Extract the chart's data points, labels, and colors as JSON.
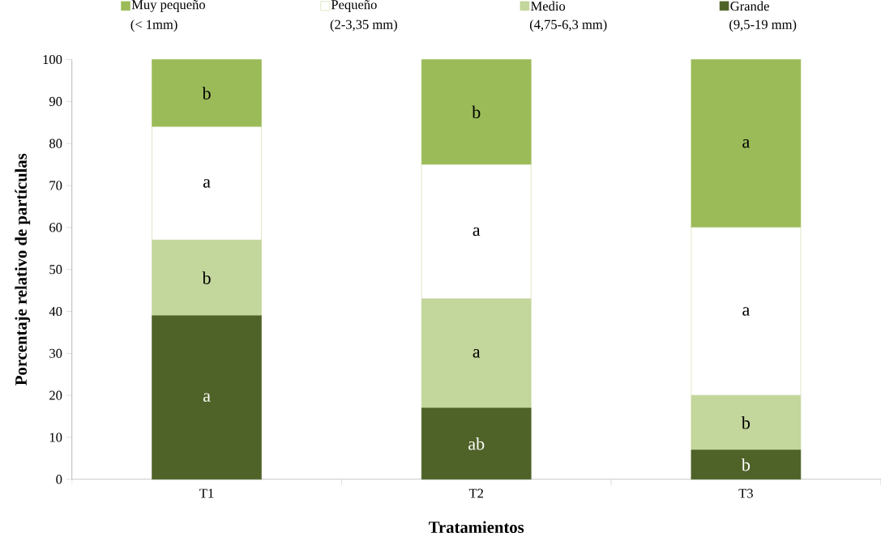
{
  "chart_data": {
    "type": "bar",
    "stacked": true,
    "xlabel": "Tratamientos",
    "ylabel": "Porcentaje relativo de partículas",
    "categories": [
      "T1",
      "T2",
      "T3"
    ],
    "series": [
      {
        "name": "Grande",
        "color": "#4f6228",
        "values": [
          39,
          17,
          7
        ],
        "value_labels": [
          "a",
          "ab",
          "b"
        ]
      },
      {
        "name": "Medio",
        "color": "#c3d69b",
        "values": [
          18,
          26,
          13
        ],
        "value_labels": [
          "b",
          "a",
          "b"
        ]
      },
      {
        "name": "Pequeño",
        "color": "#ffffff",
        "values": [
          27,
          32,
          40
        ],
        "value_labels": [
          "a",
          "a",
          "a"
        ]
      },
      {
        "name": "Muy pequeño",
        "color": "#9bbb59",
        "values": [
          16,
          25,
          40
        ],
        "value_labels": [
          "b",
          "b",
          "a"
        ]
      }
    ],
    "annotations": [
      "(< 1mm)",
      "(2-3,35 mm)",
      "(4,75-6,3 mm)",
      "(9,5-19 mm)"
    ],
    "ylim": [
      0,
      100
    ],
    "yticks": [
      0,
      10,
      20,
      30,
      40,
      50,
      60,
      70,
      80,
      90,
      100
    ],
    "grid": false,
    "legend": "top"
  }
}
